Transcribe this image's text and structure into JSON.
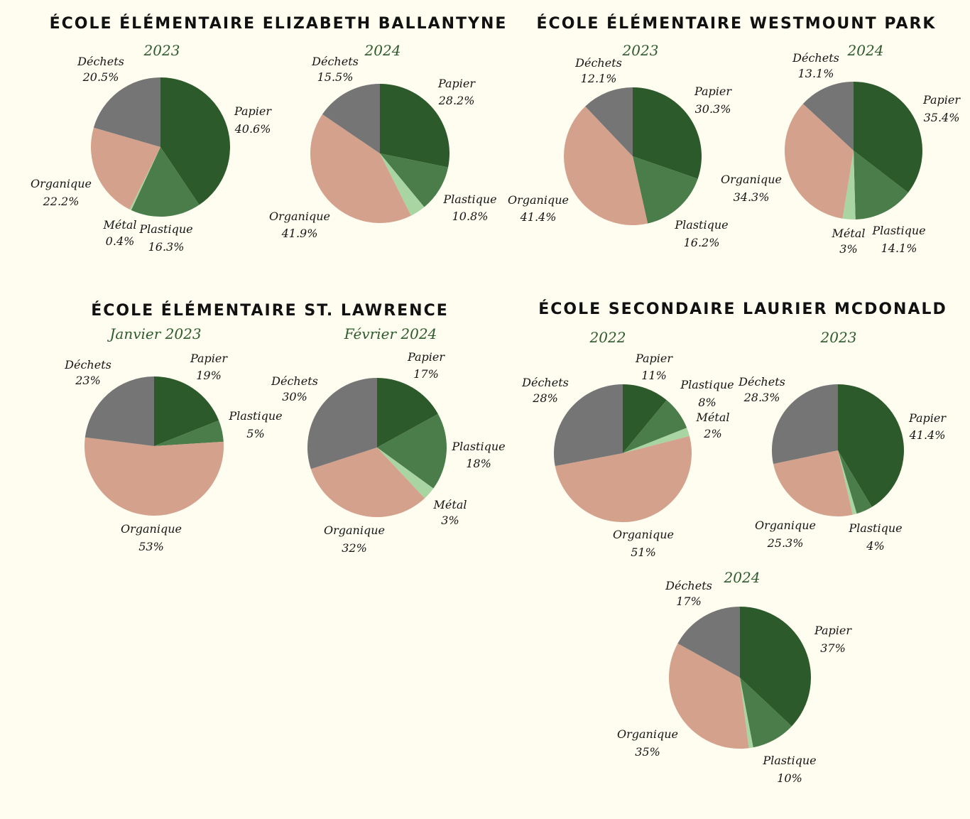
{
  "colors": {
    "Papier": "#2d5a2b",
    "Plastique": "#4a7d4a",
    "Métal": "#a8d5a2",
    "Organique": "#d4a28c",
    "Déchets": "#757575"
  },
  "schools": [
    {
      "name": "ÉCOLE ÉLÉMENTAIRE ELIZABETH BALLANTYNE"
    },
    {
      "name": "ÉCOLE ÉLÉMENTAIRE WESTMOUNT PARK"
    },
    {
      "name": "ÉCOLE ÉLÉMENTAIRE ST. LAWRENCE"
    },
    {
      "name": "ÉCOLE SECONDAIRE LAURIER MCDONALD"
    }
  ],
  "chart_data": [
    {
      "type": "pie",
      "school": "ÉCOLE ÉLÉMENTAIRE ELIZABETH BALLANTYNE",
      "title": "2023",
      "slices": [
        {
          "category": "Papier",
          "value": 40.6,
          "label": "40.6%"
        },
        {
          "category": "Plastique",
          "value": 16.3,
          "label": "16.3%"
        },
        {
          "category": "Métal",
          "value": 0.4,
          "label": "0.4%"
        },
        {
          "category": "Organique",
          "value": 22.2,
          "label": "22.2%"
        },
        {
          "category": "Déchets",
          "value": 20.5,
          "label": "20.5%"
        }
      ]
    },
    {
      "type": "pie",
      "school": "ÉCOLE ÉLÉMENTAIRE ELIZABETH BALLANTYNE",
      "title": "2024",
      "slices": [
        {
          "category": "Papier",
          "value": 28.2,
          "label": "28.2%"
        },
        {
          "category": "Plastique",
          "value": 10.8,
          "label": "10.8%"
        },
        {
          "category": "Métal",
          "value": 3.6,
          "label": null
        },
        {
          "category": "Organique",
          "value": 41.9,
          "label": "41.9%"
        },
        {
          "category": "Déchets",
          "value": 15.5,
          "label": "15.5%"
        }
      ]
    },
    {
      "type": "pie",
      "school": "ÉCOLE ÉLÉMENTAIRE WESTMOUNT PARK",
      "title": "2023",
      "slices": [
        {
          "category": "Papier",
          "value": 30.3,
          "label": "30.3%"
        },
        {
          "category": "Plastique",
          "value": 16.2,
          "label": "16.2%"
        },
        {
          "category": "Organique",
          "value": 41.4,
          "label": "41.4%"
        },
        {
          "category": "Déchets",
          "value": 12.1,
          "label": "12.1%"
        }
      ]
    },
    {
      "type": "pie",
      "school": "ÉCOLE ÉLÉMENTAIRE WESTMOUNT PARK",
      "title": "2024",
      "slices": [
        {
          "category": "Papier",
          "value": 35.4,
          "label": "35.4%"
        },
        {
          "category": "Plastique",
          "value": 14.1,
          "label": "14.1%"
        },
        {
          "category": "Métal",
          "value": 3,
          "label": "3%"
        },
        {
          "category": "Organique",
          "value": 34.3,
          "label": "34.3%"
        },
        {
          "category": "Déchets",
          "value": 13.1,
          "label": "13.1%"
        }
      ]
    },
    {
      "type": "pie",
      "school": "ÉCOLE ÉLÉMENTAIRE ST. LAWRENCE",
      "title": "Janvier 2023",
      "slices": [
        {
          "category": "Papier",
          "value": 19,
          "label": "19%"
        },
        {
          "category": "Plastique",
          "value": 5,
          "label": "5%"
        },
        {
          "category": "Organique",
          "value": 53,
          "label": "53%"
        },
        {
          "category": "Déchets",
          "value": 23,
          "label": "23%"
        }
      ]
    },
    {
      "type": "pie",
      "school": "ÉCOLE ÉLÉMENTAIRE ST. LAWRENCE",
      "title": "Février 2024",
      "slices": [
        {
          "category": "Papier",
          "value": 17,
          "label": "17%"
        },
        {
          "category": "Plastique",
          "value": 18,
          "label": "18%"
        },
        {
          "category": "Métal",
          "value": 3,
          "label": "3%"
        },
        {
          "category": "Organique",
          "value": 32,
          "label": "32%"
        },
        {
          "category": "Déchets",
          "value": 30,
          "label": "30%"
        }
      ]
    },
    {
      "type": "pie",
      "school": "ÉCOLE SECONDAIRE LAURIER MCDONALD",
      "title": "2022",
      "slices": [
        {
          "category": "Papier",
          "value": 11,
          "label": "11%"
        },
        {
          "category": "Plastique",
          "value": 8,
          "label": "8%"
        },
        {
          "category": "Métal",
          "value": 2,
          "label": "2%"
        },
        {
          "category": "Organique",
          "value": 51,
          "label": "51%"
        },
        {
          "category": "Déchets",
          "value": 28,
          "label": "28%"
        }
      ]
    },
    {
      "type": "pie",
      "school": "ÉCOLE SECONDAIRE LAURIER MCDONALD",
      "title": "2023",
      "slices": [
        {
          "category": "Papier",
          "value": 41.4,
          "label": "41.4%"
        },
        {
          "category": "Plastique",
          "value": 4,
          "label": "4%"
        },
        {
          "category": "Métal",
          "value": 1,
          "label": null
        },
        {
          "category": "Organique",
          "value": 25.3,
          "label": "25.3%"
        },
        {
          "category": "Déchets",
          "value": 28.3,
          "label": "28.3%"
        }
      ]
    },
    {
      "type": "pie",
      "school": "ÉCOLE SECONDAIRE LAURIER MCDONALD",
      "title": "2024",
      "slices": [
        {
          "category": "Papier",
          "value": 37,
          "label": "37%"
        },
        {
          "category": "Plastique",
          "value": 10,
          "label": "10%"
        },
        {
          "category": "Métal",
          "value": 1,
          "label": null
        },
        {
          "category": "Organique",
          "value": 35,
          "label": "35%"
        },
        {
          "category": "Déchets",
          "value": 17,
          "label": "17%"
        }
      ]
    }
  ]
}
